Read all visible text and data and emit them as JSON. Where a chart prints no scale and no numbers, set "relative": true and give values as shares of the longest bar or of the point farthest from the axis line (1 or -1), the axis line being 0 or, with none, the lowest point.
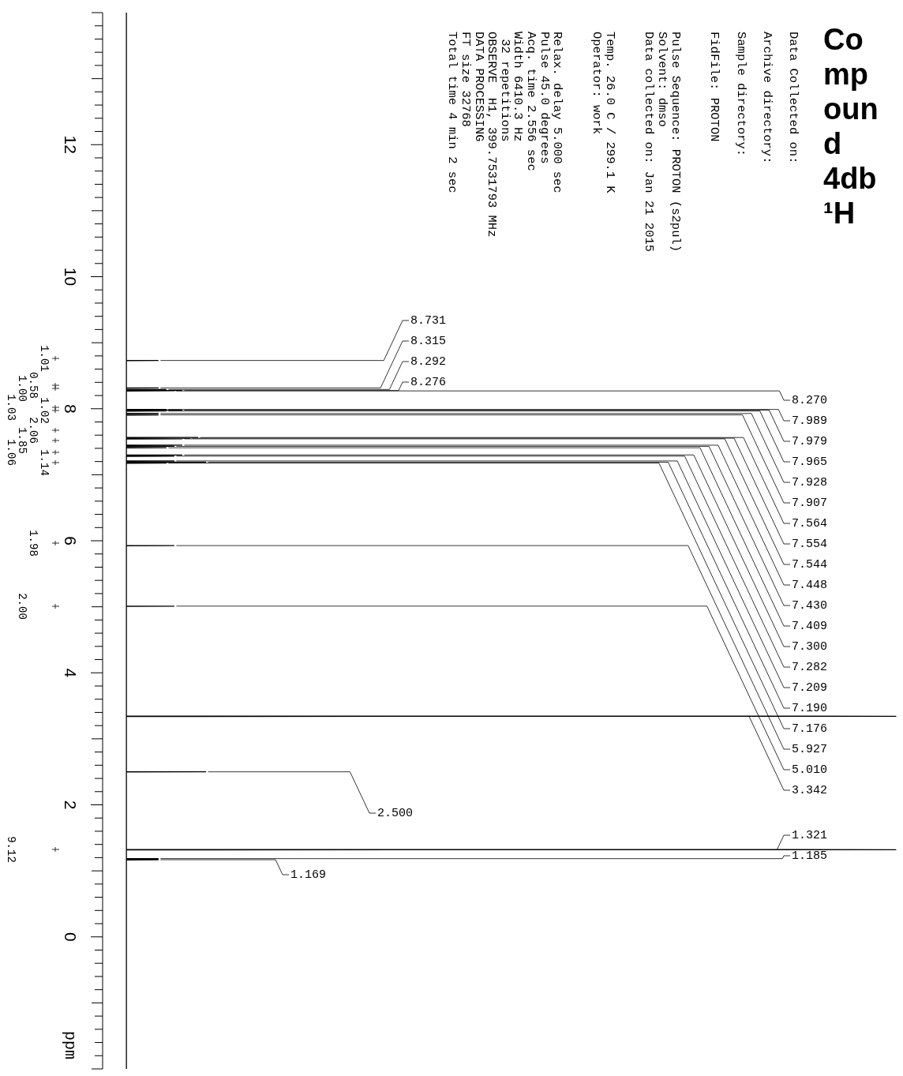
{
  "chart_data": {
    "type": "line",
    "title": "Compound 4db ¹H",
    "ylabel": "ppm",
    "relative": true,
    "color": "#000000",
    "orientation": "horizontal",
    "ylim": [
      -2,
      14
    ],
    "yticks": [
      0,
      2,
      4,
      6,
      8,
      10,
      12,
      {
        "value": -2,
        "label": null
      },
      {
        "value": -1.8,
        "label": null
      },
      {
        "value": -1.6,
        "label": null
      },
      {
        "value": -1.4,
        "label": null
      },
      {
        "value": -1.2,
        "label": null
      },
      {
        "value": -1,
        "label": null
      },
      {
        "value": -0.8,
        "label": null
      },
      {
        "value": -0.6,
        "label": null
      },
      {
        "value": -0.4,
        "label": null
      },
      {
        "value": -0.2,
        "label": null
      },
      {
        "value": 0.2,
        "label": null
      },
      {
        "value": 0.4,
        "label": null
      },
      {
        "value": 0.6,
        "label": null
      },
      {
        "value": 0.8,
        "label": null
      },
      {
        "value": 1,
        "label": null
      },
      {
        "value": 1.2,
        "label": null
      },
      {
        "value": 1.4,
        "label": null
      },
      {
        "value": 1.6,
        "label": null
      },
      {
        "value": 1.8,
        "label": null
      },
      {
        "value": 2.2,
        "label": null
      },
      {
        "value": 2.4,
        "label": null
      },
      {
        "value": 2.6,
        "label": null
      },
      {
        "value": 2.8,
        "label": null
      },
      {
        "value": 3,
        "label": null
      },
      {
        "value": 3.2,
        "label": null
      },
      {
        "value": 3.4,
        "label": null
      },
      {
        "value": 3.6,
        "label": null
      },
      {
        "value": 3.8,
        "label": null
      },
      {
        "value": 4.2,
        "label": null
      },
      {
        "value": 4.4,
        "label": null
      },
      {
        "value": 4.6,
        "label": null
      },
      {
        "value": 4.8,
        "label": null
      },
      {
        "value": 5,
        "label": null
      },
      {
        "value": 5.2,
        "label": null
      },
      {
        "value": 5.4,
        "label": null
      },
      {
        "value": 5.6,
        "label": null
      },
      {
        "value": 5.8,
        "label": null
      },
      {
        "value": 6.2,
        "label": null
      },
      {
        "value": 6.4,
        "label": null
      },
      {
        "value": 6.6,
        "label": null
      },
      {
        "value": 6.8,
        "label": null
      },
      {
        "value": 7,
        "label": null
      },
      {
        "value": 7.2,
        "label": null
      },
      {
        "value": 7.4,
        "label": null
      },
      {
        "value": 7.6,
        "label": null
      },
      {
        "value": 7.8,
        "label": null
      },
      {
        "value": 8.2,
        "label": null
      },
      {
        "value": 8.4,
        "label": null
      },
      {
        "value": 8.6,
        "label": null
      },
      {
        "value": 8.8,
        "label": null
      },
      {
        "value": 9,
        "label": null
      },
      {
        "value": 9.2,
        "label": null
      },
      {
        "value": 9.4,
        "label": null
      },
      {
        "value": 9.6,
        "label": null
      },
      {
        "value": 9.8,
        "label": null
      },
      {
        "value": 10.2,
        "label": null
      },
      {
        "value": 10.4,
        "label": null
      },
      {
        "value": 10.6,
        "label": null
      },
      {
        "value": 10.8,
        "label": null
      },
      {
        "value": 11,
        "label": null
      },
      {
        "value": 11.2,
        "label": null
      },
      {
        "value": 11.4,
        "label": null
      },
      {
        "value": 11.6,
        "label": null
      },
      {
        "value": 11.8,
        "label": null
      },
      {
        "value": 12.2,
        "label": null
      },
      {
        "value": 12.4,
        "label": null
      },
      {
        "value": 12.6,
        "label": null
      },
      {
        "value": 12.8,
        "label": null
      },
      {
        "value": 13,
        "label": null
      },
      {
        "value": 13.2,
        "label": null
      },
      {
        "value": 13.4,
        "label": null
      },
      {
        "value": 13.6,
        "label": null
      },
      {
        "value": 13.8,
        "label": null
      },
      {
        "value": 14,
        "label": null
      }
    ],
    "x": [
      14,
      8.734,
      8.731,
      8.728,
      8.318,
      8.315,
      8.312,
      8.295,
      8.292,
      8.289,
      8.279,
      8.276,
      8.273,
      8.27,
      8.267,
      7.992,
      7.989,
      7.986,
      7.982,
      7.979,
      7.976,
      7.968,
      7.965,
      7.962,
      7.931,
      7.928,
      7.925,
      7.91,
      7.907,
      7.904,
      7.567,
      7.564,
      7.561,
      7.557,
      7.554,
      7.551,
      7.547,
      7.544,
      7.541,
      7.451,
      7.448,
      7.445,
      7.433,
      7.43,
      7.427,
      7.412,
      7.409,
      7.406,
      7.303,
      7.3,
      7.297,
      7.285,
      7.282,
      7.279,
      7.212,
      7.209,
      7.206,
      7.193,
      7.19,
      7.187,
      7.179,
      7.176,
      7.173,
      5.93,
      5.927,
      5.924,
      5.013,
      5.01,
      5.007,
      3.345,
      3.342,
      3.339,
      2.503,
      2.5,
      2.497,
      1.324,
      1.321,
      1.318,
      1.188,
      1.185,
      1.182,
      1.172,
      1.169,
      1.166,
      -2
    ],
    "values": [
      0.03,
      0.03,
      0.07,
      0.03,
      0.03,
      0.07,
      0.03,
      0.03,
      0.08,
      0.03,
      0.03,
      0.1,
      0.03,
      0.09,
      0.03,
      0.03,
      0.08,
      0.03,
      0.03,
      0.1,
      0.03,
      0.03,
      0.08,
      0.03,
      0.03,
      0.07,
      0.03,
      0.03,
      0.07,
      0.03,
      0.03,
      0.12,
      0.03,
      0.03,
      0.11,
      0.03,
      0.03,
      0.1,
      0.03,
      0.03,
      0.1,
      0.03,
      0.03,
      0.09,
      0.03,
      0.03,
      0.08,
      0.03,
      0.03,
      0.1,
      0.03,
      0.03,
      0.09,
      0.03,
      0.03,
      0.09,
      0.03,
      0.03,
      0.13,
      0.03,
      0.03,
      0.08,
      0.03,
      0.03,
      0.09,
      0.03,
      0.03,
      0.09,
      0.03,
      0.03,
      1,
      0.03,
      0.03,
      0.13,
      0.03,
      0.03,
      1,
      0.03,
      0.03,
      0.07,
      0.03,
      0.03,
      0.07,
      0.03,
      0.03
    ],
    "annotations": [
      "Data Collected on:",
      "Archive directory:",
      "Sample directory:",
      "FidFile: PROTON",
      "Pulse Sequence: PROTON (s2pul)",
      "Solvent: dmso",
      "Data collected on: Jan 21 2015",
      "Temp. 26.0 C / 299.1 K",
      "Operator: work",
      "Relax. delay 5.000 sec",
      "Pulse 45.0 degrees",
      "Acq. time 2.556 sec",
      "Width 6410.3 Hz",
      " 32 repetitions",
      "OBSERVE  H1, 399.7531793 MHz",
      "DATA PROCESSING",
      "FT size 32768",
      "Total time 4 min 2 sec",
      {
        "text": "8.731",
        "y": 8.731,
        "x": 0.07
      },
      {
        "text": "8.315",
        "y": 8.315,
        "x": 0.07
      },
      {
        "text": "8.292",
        "y": 8.292,
        "x": 0.08
      },
      {
        "text": "8.276",
        "y": 8.276,
        "x": 0.1
      },
      {
        "text": "8.270",
        "y": 8.27,
        "x": 0.09
      },
      {
        "text": "7.989",
        "y": 7.989,
        "x": 0.08
      },
      {
        "text": "7.979",
        "y": 7.979,
        "x": 0.1
      },
      {
        "text": "7.965",
        "y": 7.965,
        "x": 0.08
      },
      {
        "text": "7.928",
        "y": 7.928,
        "x": 0.07
      },
      {
        "text": "7.907",
        "y": 7.907,
        "x": 0.07
      },
      {
        "text": "7.564",
        "y": 7.564,
        "x": 0.12
      },
      {
        "text": "7.554",
        "y": 7.554,
        "x": 0.11
      },
      {
        "text": "7.544",
        "y": 7.544,
        "x": 0.1
      },
      {
        "text": "7.448",
        "y": 7.448,
        "x": 0.1
      },
      {
        "text": "7.430",
        "y": 7.43,
        "x": 0.09
      },
      {
        "text": "7.409",
        "y": 7.409,
        "x": 0.08
      },
      {
        "text": "7.300",
        "y": 7.3,
        "x": 0.1
      },
      {
        "text": "7.282",
        "y": 7.282,
        "x": 0.09
      },
      {
        "text": "7.209",
        "y": 7.209,
        "x": 0.09
      },
      {
        "text": "7.190",
        "y": 7.19,
        "x": 0.13
      },
      {
        "text": "7.176",
        "y": 7.176,
        "x": 0.08
      },
      {
        "text": "5.927",
        "y": 5.927,
        "x": 0.09
      },
      {
        "text": "5.010",
        "y": 5.01,
        "x": 0.09
      },
      {
        "text": "3.342",
        "y": 3.342,
        "x": 0.81
      },
      {
        "text": "1.321",
        "y": 1.321,
        "x": 0.85
      },
      {
        "text": "1.185",
        "y": 1.185,
        "x": 0.07
      },
      {
        "text": "2.500",
        "y": 2.5,
        "x": 0.13
      },
      {
        "text": "1.169",
        "y": 1.169,
        "x": 0.07
      },
      "1.01",
      "0.58",
      "1.00",
      "1.03",
      "1.02",
      "2.06",
      "1.85",
      "1.06",
      "1.14",
      "1.98",
      "2.00",
      "9.12"
    ]
  }
}
